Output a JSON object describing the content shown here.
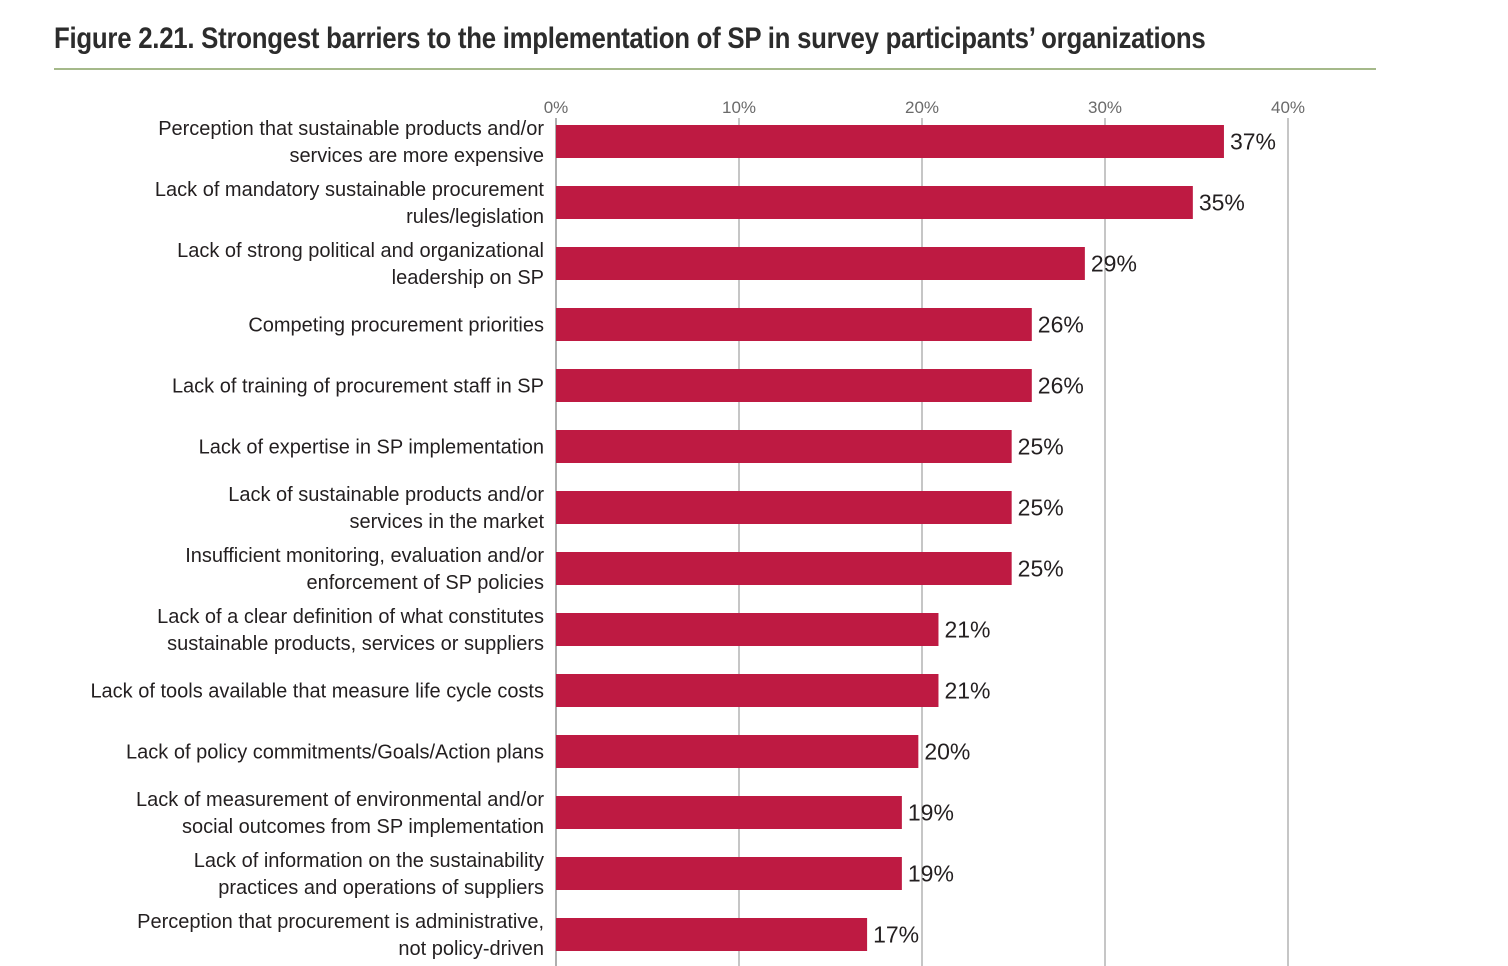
{
  "figure": {
    "number": "Figure 2.21.",
    "title": "Strongest barriers to the implementation of SP in survey participants’ organizations"
  },
  "colors": {
    "bar": "#be1a42",
    "grid": "#8c8c8c",
    "rule": "#a5b98a"
  },
  "chart_data": {
    "type": "bar",
    "orientation": "horizontal",
    "title": "Strongest barriers to the implementation of SP in survey participants’ organizations",
    "xlabel": "",
    "ylabel": "",
    "xlim": [
      0,
      40
    ],
    "ticks": [
      0,
      10,
      20,
      30,
      40
    ],
    "tick_labels": [
      "0%",
      "10%",
      "20%",
      "30%",
      "40%"
    ],
    "axis_position": "top",
    "grid": true,
    "categories": [
      [
        "Perception that sustainable products and/or",
        "services are more expensive"
      ],
      [
        "Lack of mandatory sustainable procurement",
        "rules/legislation"
      ],
      [
        "Lack of strong political and organizational",
        "leadership on SP"
      ],
      [
        "Competing procurement priorities"
      ],
      [
        "Lack of training of procurement staff in SP"
      ],
      [
        "Lack of expertise in SP implementation"
      ],
      [
        "Lack of sustainable products and/or",
        "services in the market"
      ],
      [
        "Insufficient monitoring, evaluation and/or",
        "enforcement of SP policies"
      ],
      [
        "Lack of a clear definition of what constitutes",
        "sustainable products, services or suppliers"
      ],
      [
        "Lack of tools available that measure life cycle costs"
      ],
      [
        "Lack of policy commitments/Goals/Action plans"
      ],
      [
        "Lack of measurement of environmental and/or",
        "social outcomes from SP implementation"
      ],
      [
        "Lack of information on the sustainability",
        "practices and operations of suppliers"
      ],
      [
        "Perception that procurement is administrative,",
        "not policy-driven"
      ]
    ],
    "values": [
      36.5,
      34.8,
      28.9,
      26.0,
      26.0,
      24.9,
      24.9,
      24.9,
      20.9,
      20.9,
      19.8,
      18.9,
      18.9,
      17.0
    ],
    "value_labels": [
      "37%",
      "35%",
      "29%",
      "26%",
      "26%",
      "25%",
      "25%",
      "25%",
      "21%",
      "21%",
      "20%",
      "19%",
      "19%",
      "17%"
    ]
  }
}
